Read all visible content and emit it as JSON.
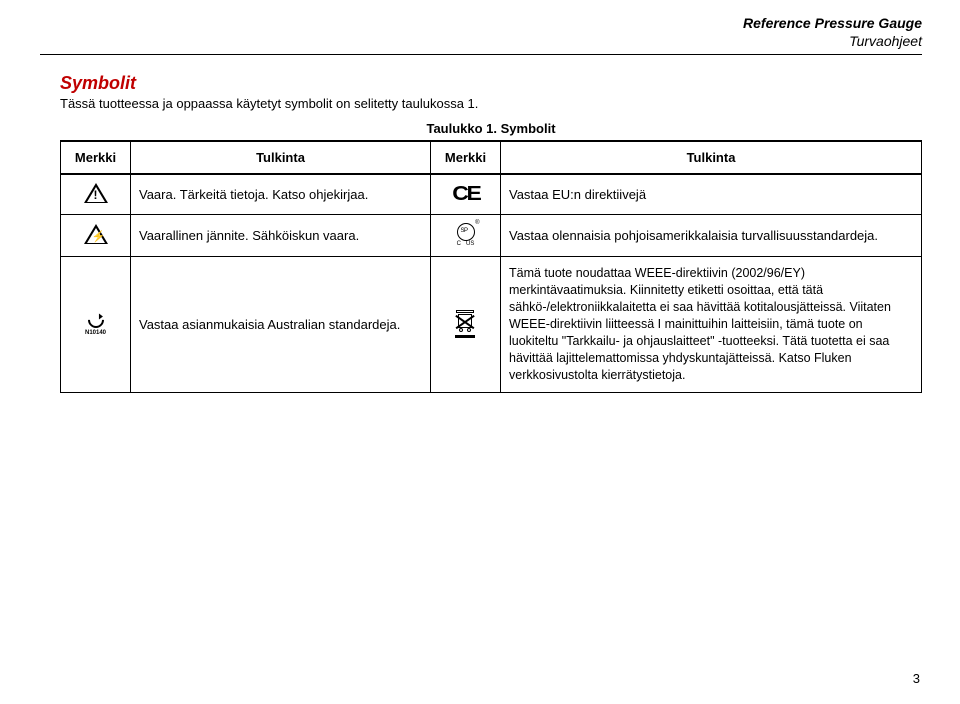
{
  "header": {
    "line1": "Reference Pressure Gauge",
    "line2": "Turvaohjeet"
  },
  "section": {
    "title": "Symbolit",
    "intro": "Tässä tuotteessa ja oppaassa käytetyt symbolit on selitetty taulukossa 1.",
    "caption": "Taulukko 1. Symbolit"
  },
  "table": {
    "head": {
      "c1": "Merkki",
      "c2": "Tulkinta",
      "c3": "Merkki",
      "c4": "Tulkinta"
    },
    "row1": {
      "desc1": "Vaara. Tärkeitä tietoja. Katso ohjekirjaa.",
      "desc2": "Vastaa EU:n direktiivejä"
    },
    "row2": {
      "desc1": "Vaarallinen jännite. Sähköiskun vaara.",
      "desc2": "Vastaa olennaisia pohjoisamerikkalaisia turvallisuusstandardeja."
    },
    "row3": {
      "ctick_label": "N10140",
      "desc1": "Vastaa asianmukaisia Australian standardeja.",
      "desc2": "Tämä tuote noudattaa WEEE-direktiivin (2002/96/EY) merkintävaatimuksia. Kiinnitetty etiketti osoittaa, että tätä sähkö-/elektroniikkalaitetta ei saa hävittää kotitalousjätteissä. Viitaten WEEE-direktiivin liitteessä I mainittuihin laitteisiin, tämä tuote on luokiteltu \"Tarkkailu- ja ohjauslaitteet\" -tuotteeksi. Tätä tuotetta ei saa hävittää lajittelemattomissa yhdyskuntajätteissä. Katso Fluken verkkosivustolta kierrätystietoja."
    }
  },
  "page_number": "3",
  "colors": {
    "heading": "#c00000",
    "text": "#000000",
    "border": "#000000",
    "background": "#ffffff"
  }
}
